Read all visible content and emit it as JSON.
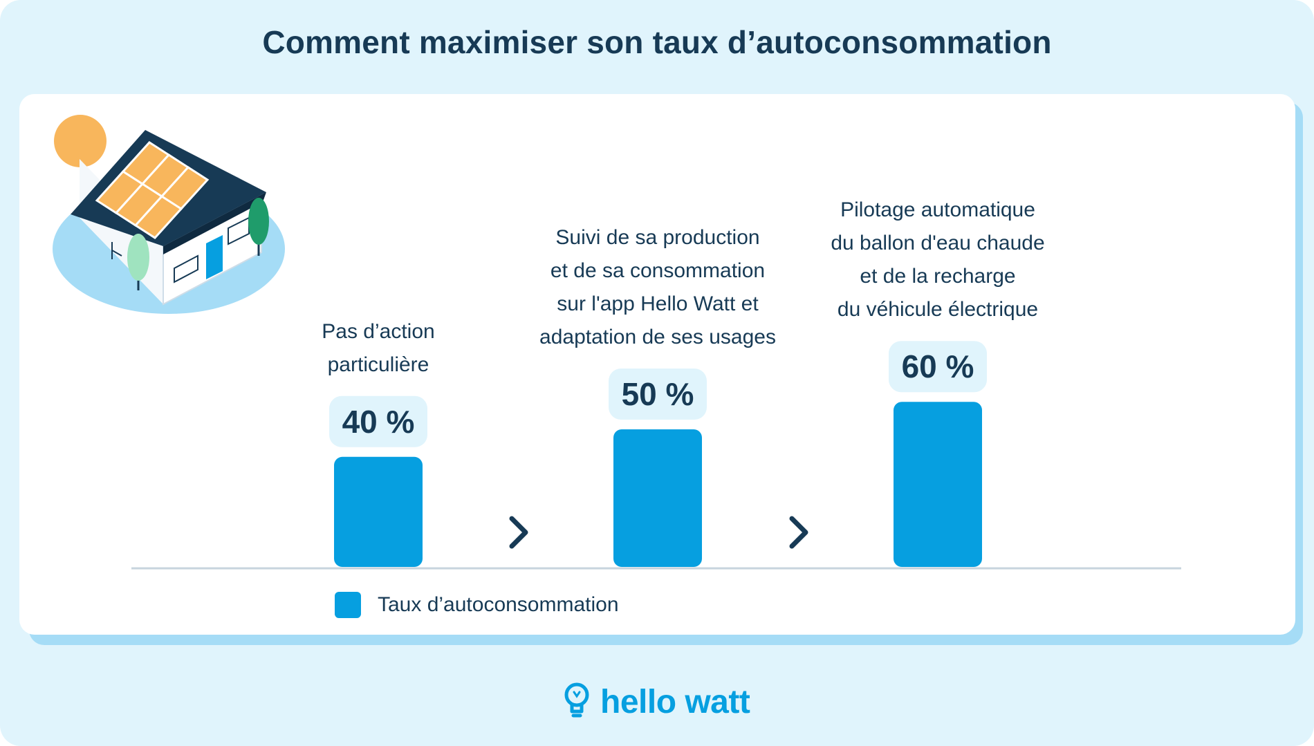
{
  "title": "Comment maximiser son taux d’autoconsommation",
  "colors": {
    "background": "#e0f4fc",
    "card": "#ffffff",
    "bar": "#069fe0",
    "badge": "#e0f4fc",
    "text": "#173a55",
    "brand": "#069fe0"
  },
  "chart_data": {
    "type": "bar",
    "categories": [
      [
        "Pas d’action",
        "particulière"
      ],
      [
        "Suivi de sa production",
        "et de sa consommation",
        "sur l'app Hello Watt et",
        "adaptation de ses usages"
      ],
      [
        "Pilotage automatique",
        "du ballon d'eau chaude",
        "et de la recharge",
        "du véhicule électrique"
      ]
    ],
    "series": [
      {
        "name": "Taux d’autoconsommation",
        "values": [
          40,
          50,
          60
        ]
      }
    ],
    "data_labels": [
      "40 %",
      "50 %",
      "60 %"
    ],
    "grid": false,
    "legend_position": "bottom-left"
  },
  "legend": {
    "label": "Taux d’autoconsommation"
  },
  "brand": {
    "name": "hello watt",
    "icon": "lightbulb-icon"
  },
  "illustration": {
    "icon": "house-with-solar-panels-icon",
    "sun_icon": "sun-icon",
    "arrow_icon": "chevron-right-icon"
  }
}
